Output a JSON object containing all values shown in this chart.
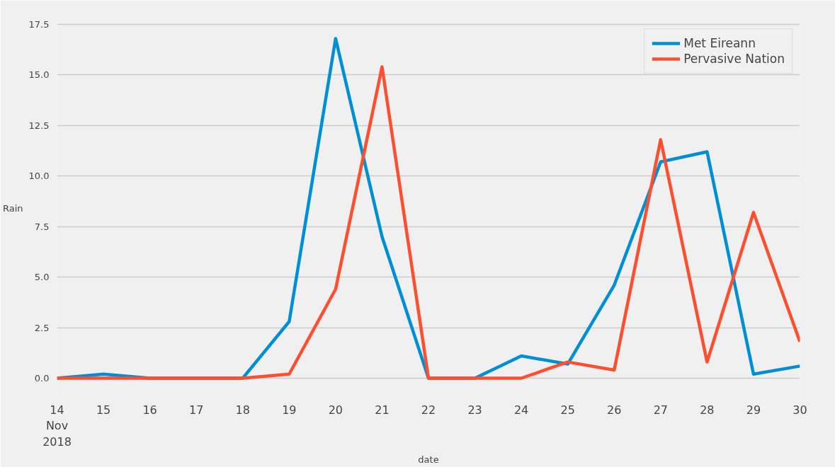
{
  "chart_data": {
    "type": "line",
    "xlabel": "date",
    "ylabel": "Rain",
    "x": [
      "2018-11-14",
      "2018-11-15",
      "2018-11-16",
      "2018-11-17",
      "2018-11-18",
      "2018-11-19",
      "2018-11-20",
      "2018-11-21",
      "2018-11-22",
      "2018-11-23",
      "2018-11-24",
      "2018-11-25",
      "2018-11-26",
      "2018-11-27",
      "2018-11-28",
      "2018-11-29",
      "2018-11-30"
    ],
    "series": [
      {
        "name": "Met Eireann",
        "color": "#008fd5",
        "values": [
          0,
          0.2,
          0,
          0,
          0,
          2.8,
          16.8,
          7.0,
          0,
          0,
          1.1,
          0.7,
          4.6,
          10.7,
          11.2,
          0.2,
          0.6
        ]
      },
      {
        "name": "Pervasive Nation",
        "color": "#fc4f30",
        "values": [
          0,
          0,
          0,
          0,
          0,
          0.2,
          4.4,
          15.4,
          0,
          0,
          0,
          0.8,
          0.4,
          11.8,
          0.8,
          8.2,
          1.8
        ]
      }
    ],
    "xlim": [
      "2018-11-14",
      "2018-11-30"
    ],
    "xticks": [
      {
        "value": "2018-11-14",
        "label": "14\nNov\n2018"
      },
      {
        "value": "2018-11-15",
        "label": "15"
      },
      {
        "value": "2018-11-16",
        "label": "16"
      },
      {
        "value": "2018-11-17",
        "label": "17"
      },
      {
        "value": "2018-11-18",
        "label": "18"
      },
      {
        "value": "2018-11-19",
        "label": "19"
      },
      {
        "value": "2018-11-20",
        "label": "20"
      },
      {
        "value": "2018-11-21",
        "label": "21"
      },
      {
        "value": "2018-11-22",
        "label": "22"
      },
      {
        "value": "2018-11-23",
        "label": "23"
      },
      {
        "value": "2018-11-24",
        "label": "24"
      },
      {
        "value": "2018-11-25",
        "label": "25"
      },
      {
        "value": "2018-11-26",
        "label": "26"
      },
      {
        "value": "2018-11-27",
        "label": "27"
      },
      {
        "value": "2018-11-28",
        "label": "28"
      },
      {
        "value": "2018-11-29",
        "label": "29"
      },
      {
        "value": "2018-11-30",
        "label": "30"
      }
    ],
    "ylim": [
      -0.84,
      17.64
    ],
    "yticks": [
      {
        "value": 0,
        "label": "0.0"
      },
      {
        "value": 2.5,
        "label": "2.5"
      },
      {
        "value": 5,
        "label": "5.0"
      },
      {
        "value": 7.5,
        "label": "7.5"
      },
      {
        "value": 10,
        "label": "10.0"
      },
      {
        "value": 12.5,
        "label": "12.5"
      },
      {
        "value": 15,
        "label": "15.0"
      },
      {
        "value": 17.5,
        "label": "17.5"
      }
    ],
    "grid": "y",
    "legend": "top right",
    "line_style": "solid"
  }
}
